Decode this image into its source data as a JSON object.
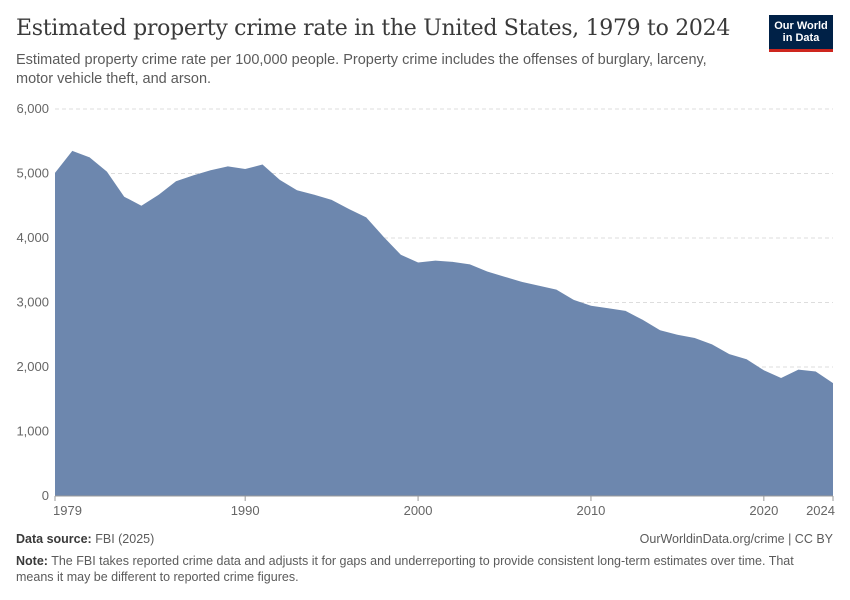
{
  "header": {
    "title": "Estimated property crime rate in the United States, 1979 to 2024",
    "subtitle": "Estimated property crime rate per 100,000 people. Property crime includes the offenses of burglary, larceny, motor vehicle theft, and arson.",
    "logo_line1": "Our World",
    "logo_line2": "in Data"
  },
  "chart_data": {
    "type": "area",
    "title": "Estimated property crime rate in the United States, 1979 to 2024",
    "xlabel": "",
    "ylabel": "",
    "xlim": [
      1979,
      2024
    ],
    "ylim": [
      0,
      6000
    ],
    "grid": true,
    "color": "#6d87ae",
    "x_ticks": [
      1979,
      1990,
      2000,
      2010,
      2020,
      2024
    ],
    "x_tick_labels": [
      "1979",
      "1990",
      "2000",
      "2010",
      "2020",
      "2024"
    ],
    "y_ticks": [
      0,
      1000,
      2000,
      3000,
      4000,
      5000,
      6000
    ],
    "y_tick_labels": [
      "0",
      "1,000",
      "2,000",
      "3,000",
      "4,000",
      "5,000",
      "6,000"
    ],
    "x": [
      1979,
      1980,
      1981,
      1982,
      1983,
      1984,
      1985,
      1986,
      1987,
      1988,
      1989,
      1990,
      1991,
      1992,
      1993,
      1994,
      1995,
      1996,
      1997,
      1998,
      1999,
      2000,
      2001,
      2002,
      2003,
      2004,
      2005,
      2006,
      2007,
      2008,
      2009,
      2010,
      2011,
      2012,
      2013,
      2014,
      2015,
      2016,
      2017,
      2018,
      2019,
      2020,
      2021,
      2022,
      2023,
      2024
    ],
    "values": [
      5010,
      5350,
      5250,
      5030,
      4640,
      4500,
      4670,
      4880,
      4970,
      5050,
      5110,
      5070,
      5140,
      4900,
      4740,
      4670,
      4590,
      4450,
      4320,
      4020,
      3740,
      3620,
      3650,
      3630,
      3590,
      3480,
      3400,
      3320,
      3260,
      3200,
      3040,
      2950,
      2910,
      2870,
      2730,
      2570,
      2500,
      2450,
      2350,
      2200,
      2120,
      1950,
      1830,
      1960,
      1930,
      1750
    ]
  },
  "footer": {
    "source_label": "Data source:",
    "source_value": "FBI (2025)",
    "link": "OurWorldinData.org/crime | CC BY",
    "note_label": "Note:",
    "note_text": "The FBI takes reported crime data and adjusts it for gaps and underreporting to provide consistent long-term estimates over time. That means it may be different to reported crime figures."
  }
}
